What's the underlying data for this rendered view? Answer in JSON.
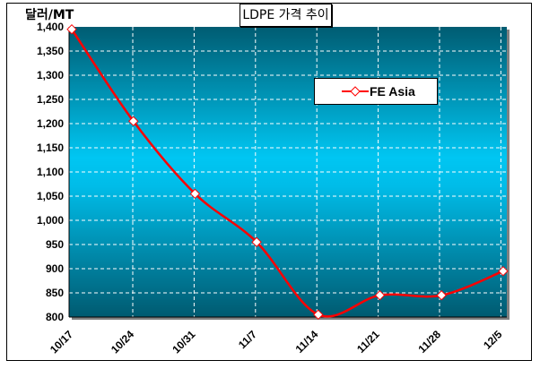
{
  "chart_data": {
    "type": "line",
    "title": "LDPE 가격 추이",
    "ylabel": "달러/MT",
    "xlabel": "",
    "categories": [
      "10/17",
      "10/24",
      "10/31",
      "11/7",
      "11/14",
      "11/21",
      "11/28",
      "12/5"
    ],
    "series": [
      {
        "name": "FE Asia",
        "values": [
          1395,
          1205,
          1055,
          955,
          805,
          845,
          845,
          895
        ],
        "color": "#ff0000",
        "marker": "diamond"
      }
    ],
    "ylim": [
      800,
      1400
    ],
    "yticks": [
      800,
      850,
      900,
      950,
      1000,
      1050,
      1100,
      1150,
      1200,
      1250,
      1300,
      1350,
      1400
    ],
    "ytick_labels": [
      "800",
      "850",
      "900",
      "950",
      "1,000",
      "1,050",
      "1,100",
      "1,150",
      "1,200",
      "1,250",
      "1,300",
      "1,350",
      "1,400"
    ],
    "grid": true,
    "legend": "top-right"
  }
}
